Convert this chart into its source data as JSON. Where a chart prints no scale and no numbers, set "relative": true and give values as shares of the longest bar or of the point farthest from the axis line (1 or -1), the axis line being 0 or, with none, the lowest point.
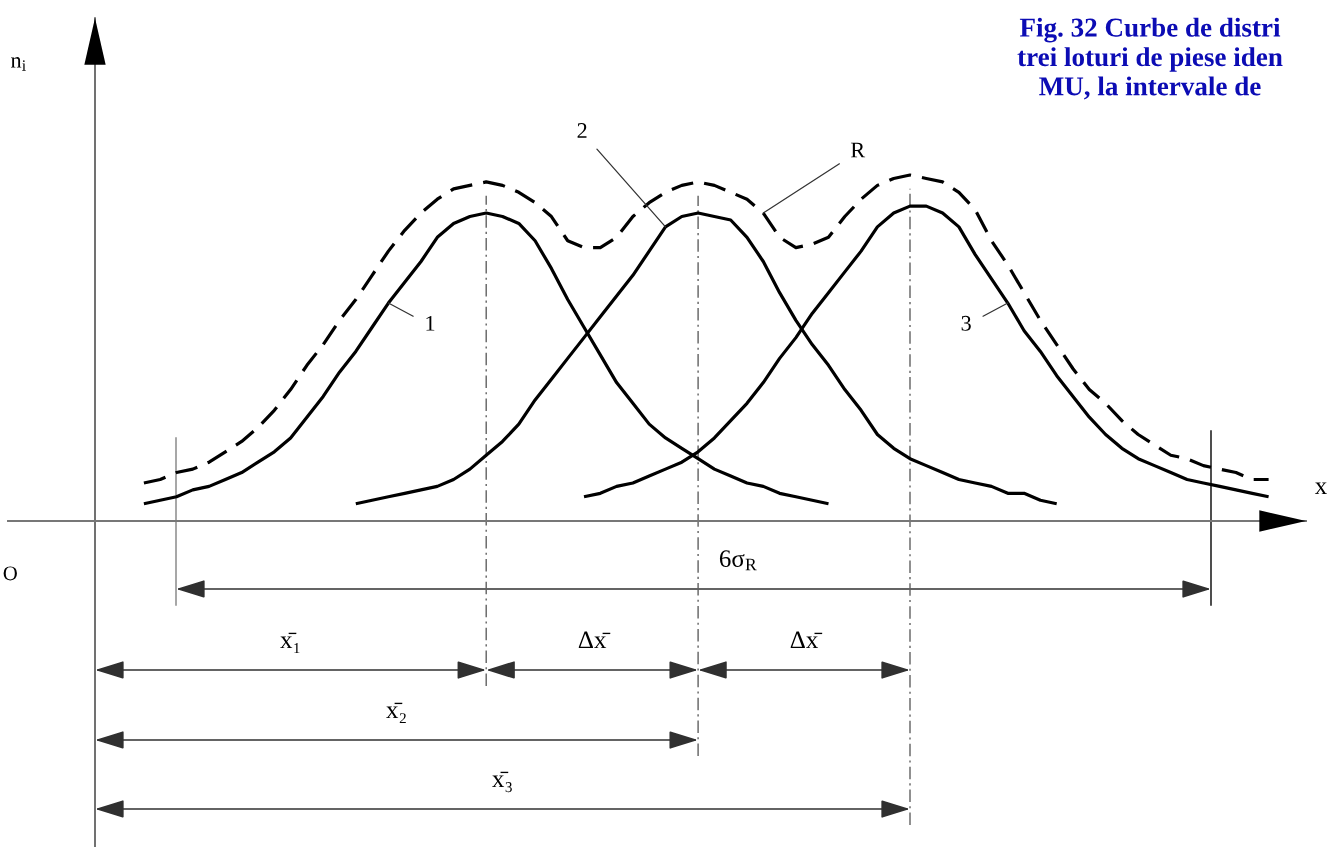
{
  "chart_data": {
    "type": "line",
    "title": "Fig. 32 Curbe de distri\ntrei loturi de piese iden\nMU, la intervale de",
    "xlabel": "x",
    "relative": true,
    "grid": "x",
    "categories": [
      null,
      null,
      null,
      null,
      null,
      null,
      null,
      null,
      null,
      null,
      null,
      null,
      null,
      null,
      null,
      null,
      null,
      null,
      null,
      null,
      null,
      null,
      null,
      null,
      null,
      null,
      null,
      null,
      null,
      null,
      null,
      null,
      null,
      null,
      null,
      null,
      null,
      null,
      null,
      null,
      null,
      null,
      null,
      null,
      null,
      null,
      null,
      null,
      null,
      null,
      null,
      null,
      null,
      null,
      null,
      null,
      null,
      null,
      null,
      null,
      null,
      null,
      null,
      null,
      null,
      null,
      null,
      null,
      null,
      null,
      null,
      null,
      null
    ],
    "series": [
      {
        "name": "1",
        "color": "#000000",
        "values": [
          null,
          null,
          null,
          0.05,
          0.06,
          0.07,
          0.09,
          0.1,
          0.12,
          0.14,
          0.17,
          0.2,
          0.24,
          0.3,
          0.36,
          0.43,
          0.49,
          0.56,
          0.63,
          0.69,
          0.75,
          0.82,
          0.86,
          0.88,
          0.89,
          0.88,
          0.86,
          0.81,
          0.73,
          0.64,
          0.56,
          0.48,
          0.4,
          0.34,
          0.28,
          0.24,
          0.21,
          0.18,
          0.15,
          0.13,
          0.11,
          0.1,
          0.08,
          0.07,
          0.06,
          0.05,
          null,
          null,
          null,
          null,
          null,
          null,
          null,
          null,
          null,
          null,
          null,
          null,
          null,
          null,
          null,
          null,
          null,
          null,
          null,
          null,
          null,
          null,
          null,
          null,
          null,
          null,
          null
        ]
      },
      {
        "name": "2",
        "color": "#000000",
        "values": [
          null,
          null,
          null,
          null,
          null,
          null,
          null,
          null,
          null,
          null,
          null,
          null,
          null,
          null,
          null,
          null,
          0.05,
          0.06,
          0.07,
          0.08,
          0.09,
          0.1,
          0.12,
          0.15,
          0.19,
          0.23,
          0.28,
          0.35,
          0.41,
          0.47,
          0.53,
          0.59,
          0.65,
          0.71,
          0.78,
          0.85,
          0.88,
          0.89,
          0.88,
          0.87,
          0.82,
          0.75,
          0.66,
          0.58,
          0.51,
          0.45,
          0.38,
          0.32,
          0.25,
          0.21,
          0.18,
          0.16,
          0.14,
          0.12,
          0.11,
          0.1,
          0.08,
          0.08,
          0.06,
          0.05,
          null,
          null,
          null,
          null,
          null,
          null,
          null,
          null,
          null,
          null,
          null,
          null,
          null
        ]
      },
      {
        "name": "3",
        "color": "#000000",
        "values": [
          null,
          null,
          null,
          null,
          null,
          null,
          null,
          null,
          null,
          null,
          null,
          null,
          null,
          null,
          null,
          null,
          null,
          null,
          null,
          null,
          null,
          null,
          null,
          null,
          null,
          null,
          null,
          null,
          null,
          null,
          0.07,
          0.08,
          0.1,
          0.11,
          0.13,
          0.15,
          0.17,
          0.2,
          0.24,
          0.29,
          0.34,
          0.4,
          0.47,
          0.53,
          0.6,
          0.66,
          0.72,
          0.78,
          0.85,
          0.89,
          0.91,
          0.91,
          0.89,
          0.85,
          0.77,
          0.7,
          0.63,
          0.55,
          0.49,
          0.42,
          0.36,
          0.3,
          0.25,
          0.21,
          0.18,
          0.16,
          0.14,
          0.12,
          0.11,
          0.1,
          0.09,
          0.08,
          0.07
        ]
      },
      {
        "name": "R",
        "color": "#000000",
        "line_style": "dashed",
        "values": [
          null,
          null,
          null,
          0.11,
          0.12,
          0.14,
          0.15,
          0.17,
          0.2,
          0.23,
          0.27,
          0.32,
          0.38,
          0.45,
          0.51,
          0.58,
          0.64,
          0.71,
          0.78,
          0.84,
          0.89,
          0.93,
          0.96,
          0.97,
          0.98,
          0.97,
          0.95,
          0.92,
          0.88,
          0.81,
          0.79,
          0.79,
          0.82,
          0.88,
          0.92,
          0.95,
          0.97,
          0.98,
          0.97,
          0.95,
          0.93,
          0.89,
          0.82,
          0.79,
          0.8,
          0.82,
          0.88,
          0.93,
          0.97,
          0.99,
          1.0,
          0.99,
          0.98,
          0.95,
          0.9,
          0.81,
          0.74,
          0.66,
          0.58,
          0.51,
          0.44,
          0.38,
          0.34,
          0.29,
          0.25,
          0.22,
          0.19,
          0.18,
          0.16,
          0.15,
          0.14,
          0.12,
          0.12
        ]
      }
    ],
    "annotations": [
      "n$_{i}$",
      "O",
      "6σ$_{R}$",
      "x̄₁",
      "Δx̄",
      "Δx̄",
      "x̄₂",
      "x̄₃"
    ]
  }
}
